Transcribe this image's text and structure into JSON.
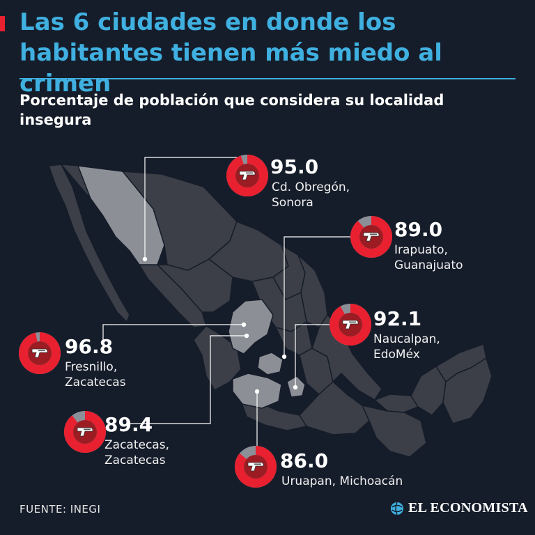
{
  "title": "Las 6 ciudades en donde los habitantes tienen más miedo al crimen",
  "subtitle": "Porcentaje de población que considera su localidad insegura",
  "source": "FUENTE: INEGI",
  "brand": "EL ECONOMISTA",
  "colors": {
    "background": "#161d2a",
    "title": "#3fb0e0",
    "donut_fill": "#e8202f",
    "donut_center": "#9c1c23",
    "donut_rest": "#8b8f97",
    "map_state": "#3c3f47",
    "map_highlight": "#8c8f96",
    "connector": "#ffffff"
  },
  "chart_data": {
    "type": "donut-map",
    "unit": "%",
    "max": 100,
    "cities": [
      {
        "value": 95.0,
        "value_label": "95.0",
        "name": "Cd. Obregón,\nSonora",
        "icon": "pistol-icon"
      },
      {
        "value": 89.0,
        "value_label": "89.0",
        "name": "Irapuato,\nGuanajuato",
        "icon": "pistol-icon"
      },
      {
        "value": 92.1,
        "value_label": "92.1",
        "name": "Naucalpan,\nEdoMéx",
        "icon": "pistol-icon"
      },
      {
        "value": 96.8,
        "value_label": "96.8",
        "name": "Fresnillo,\nZacatecas",
        "icon": "pistol-icon"
      },
      {
        "value": 89.4,
        "value_label": "89.4",
        "name": "Zacatecas,\nZacatecas",
        "icon": "pistol-icon"
      },
      {
        "value": 86.0,
        "value_label": "86.0",
        "name": "Uruapan, Michoacán",
        "icon": "pistol-icon"
      }
    ]
  }
}
